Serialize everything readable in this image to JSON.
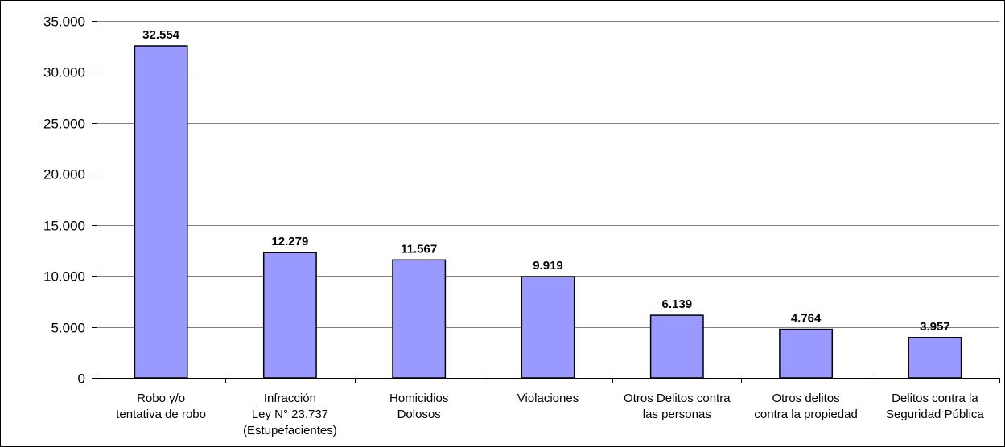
{
  "chart_data": {
    "type": "bar",
    "title": "",
    "xlabel": "",
    "ylabel": "",
    "ylim": [
      0,
      35000
    ],
    "yticks": [
      0,
      5000,
      10000,
      15000,
      20000,
      25000,
      30000,
      35000
    ],
    "ytick_labels": [
      "0",
      "5.000",
      "10.000",
      "15.000",
      "20.000",
      "25.000",
      "30.000",
      "35.000"
    ],
    "grid": true,
    "legend": "none",
    "bar_color": "#9999ff",
    "bar_edge_color": "#000000",
    "categories": [
      [
        "Robo y/o",
        "tentativa de robo"
      ],
      [
        "Infracción",
        "Ley N° 23.737",
        "(Estupefacientes)"
      ],
      [
        "Homicidios",
        "Dolosos"
      ],
      [
        "Violaciones"
      ],
      [
        "Otros Delitos contra",
        "las personas"
      ],
      [
        "Otros delitos",
        "contra la propiedad"
      ],
      [
        "Delitos contra la",
        "Seguridad Pública"
      ]
    ],
    "values": [
      32554,
      12279,
      11567,
      9919,
      6139,
      4764,
      3957
    ],
    "value_labels": [
      "32.554",
      "12.279",
      "11.567",
      "9.919",
      "6.139",
      "4.764",
      "3.957"
    ]
  }
}
